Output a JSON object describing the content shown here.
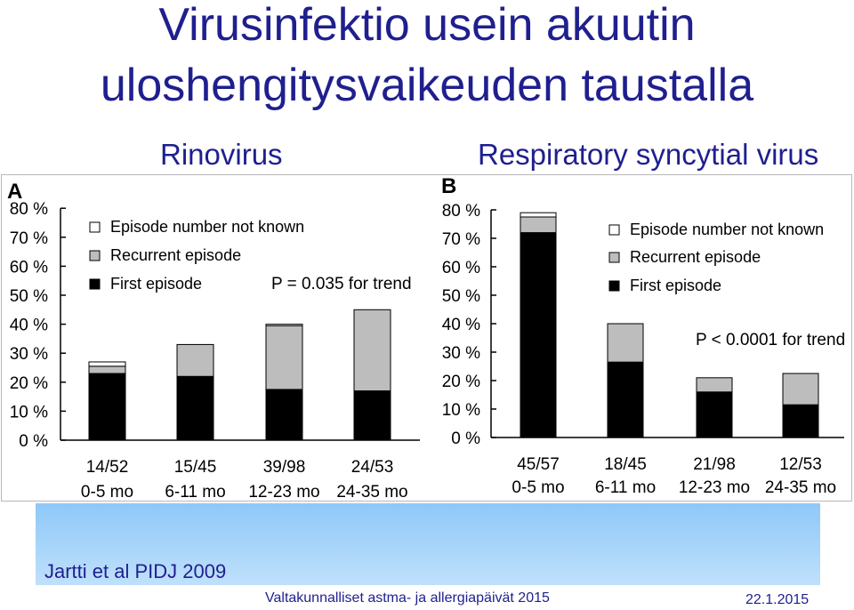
{
  "slide": {
    "title_line1": "Virusinfektio usein akuutin",
    "title_line2": "uloshengitysvaikeuden taustalla",
    "subtitle_a": "Rinovirus",
    "subtitle_b": "Respiratory syncytial virus",
    "citation": "Jartti et al PIDJ 2009",
    "footer_event": "Valtakunnalliset astma- ja allergiapäivät 2015",
    "footer_date": "22.1.2015"
  },
  "colors": {
    "title": "#1f1f8f",
    "first_episode": "#000000",
    "recurrent_episode": "#bdbdbd",
    "episode_unknown": "#ffffff",
    "band": "#a8d4fa"
  },
  "chart_data": [
    {
      "type": "bar",
      "stacked": true,
      "panel_label": "A",
      "categories": [
        "0-5 mo",
        "6-11 mo",
        "12-23 mo",
        "24-35 mo"
      ],
      "counts": [
        "14/52",
        "15/45",
        "39/98",
        "24/53"
      ],
      "y_ticks": [
        "0 %",
        "10 %",
        "20 %",
        "30 %",
        "40 %",
        "50 %",
        "60 %",
        "70 %",
        "80 %"
      ],
      "ylim": [
        0,
        80
      ],
      "series": [
        {
          "name": "First episode",
          "values": [
            23,
            22,
            17.5,
            17
          ]
        },
        {
          "name": "Recurrent episode",
          "values": [
            2.5,
            11,
            22,
            28
          ]
        },
        {
          "name": "Episode number not known",
          "values": [
            1.5,
            0,
            0.5,
            0
          ]
        }
      ],
      "annotation": "P = 0.035 for trend",
      "legend_position": "top-left"
    },
    {
      "type": "bar",
      "stacked": true,
      "panel_label": "B",
      "categories": [
        "0-5 mo",
        "6-11 mo",
        "12-23 mo",
        "24-35 mo"
      ],
      "counts": [
        "45/57",
        "18/45",
        "21/98",
        "12/53"
      ],
      "y_ticks": [
        "0 %",
        "10 %",
        "20 %",
        "30 %",
        "40 %",
        "50 %",
        "60 %",
        "70 %",
        "80 %"
      ],
      "ylim": [
        0,
        80
      ],
      "series": [
        {
          "name": "First episode",
          "values": [
            72,
            26.5,
            16,
            11.5
          ]
        },
        {
          "name": "Recurrent episode",
          "values": [
            5.5,
            13.5,
            5,
            11
          ]
        },
        {
          "name": "Episode number not known",
          "values": [
            1.5,
            0,
            0,
            0
          ]
        }
      ],
      "annotation": "P < 0.0001 for trend",
      "legend_position": "top-right"
    }
  ]
}
